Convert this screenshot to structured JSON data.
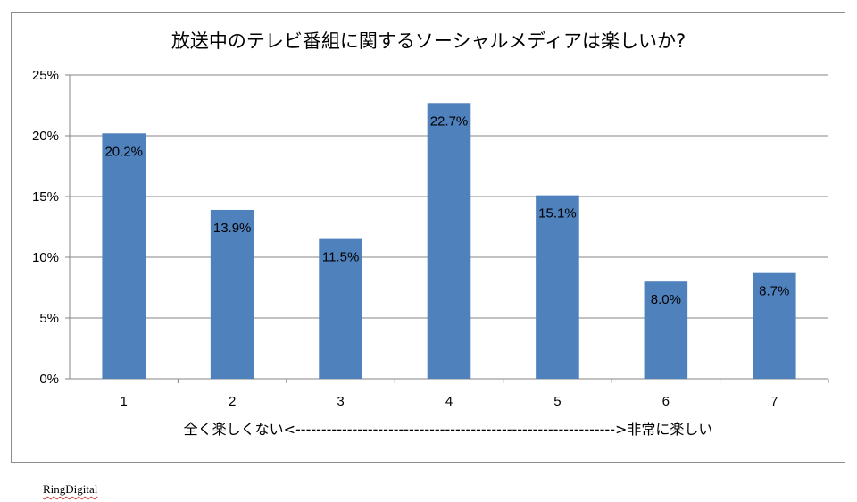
{
  "chart_data": {
    "type": "bar",
    "title": "放送中のテレビ番組に関するソーシャルメディアは楽しいか?",
    "categories": [
      "1",
      "2",
      "3",
      "4",
      "5",
      "6",
      "7"
    ],
    "values": [
      20.2,
      13.9,
      11.5,
      22.7,
      15.1,
      8.0,
      8.7
    ],
    "data_labels": [
      "20.2%",
      "13.9%",
      "11.5%",
      "22.7%",
      "15.1%",
      "8.0%",
      "8.7%"
    ],
    "y_ticks": [
      "0%",
      "5%",
      "10%",
      "15%",
      "20%",
      "25%"
    ],
    "ylim": [
      0,
      25
    ],
    "grid": true,
    "bar_color": "#4f81bd",
    "scale_annotation": "全く楽しくない<-------------------------------------------------------------->非常に楽しい"
  },
  "footer": {
    "credit": "RingDigital"
  }
}
